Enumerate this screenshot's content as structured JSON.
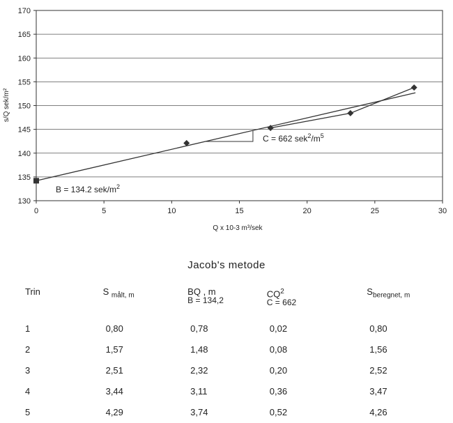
{
  "chart_data": {
    "type": "scatter",
    "xlabel": "Q x 10-3 m³/sek",
    "ylabel": "s/Q sek/m²",
    "xlim": [
      0,
      30
    ],
    "ylim": [
      130,
      170
    ],
    "x_ticks": [
      0,
      5,
      10,
      15,
      20,
      25,
      30
    ],
    "y_ticks": [
      130,
      135,
      140,
      145,
      150,
      155,
      160,
      165,
      170
    ],
    "grid": "horizontal",
    "series": [
      {
        "marker": "square",
        "color": "#333333",
        "x": [
          0
        ],
        "y": [
          134.2
        ]
      },
      {
        "marker": "diamond",
        "color": "#333333",
        "x": [
          11.1,
          17.3,
          23.2,
          27.9
        ],
        "y": [
          142.1,
          145.3,
          148.4,
          153.8
        ]
      }
    ],
    "fit_line": {
      "x": [
        0,
        28
      ],
      "y": [
        134.2,
        152.7
      ]
    },
    "connector": {
      "x": [
        17.3,
        23.2,
        27.9
      ],
      "y": [
        145.3,
        148.4,
        153.8
      ]
    },
    "annotations": {
      "intercept": {
        "prefix": "B = 134.2 sek/m",
        "sup": "2"
      },
      "slope": {
        "prefix": "C = 662 sek",
        "sup1": "2",
        "mid": "/m",
        "sup2": "5"
      }
    }
  },
  "method": {
    "title": "Jacob's metode",
    "headers": {
      "trin": "Trin",
      "s_maalt": "S",
      "s_maalt_sub": "målt, m",
      "bq": "BQ , m",
      "bq_sub": "B = 134,2",
      "cq": "CQ",
      "cq_sup": "2",
      "cq_sub": "C = 662",
      "s_beregnet": "S",
      "s_beregnet_sub": "beregnet, m"
    },
    "rows": [
      {
        "trin": "1",
        "s_maalt": "0,80",
        "bq": "0,78",
        "cq": "0,02",
        "s_beregnet": "0,80"
      },
      {
        "trin": "2",
        "s_maalt": "1,57",
        "bq": "1,48",
        "cq": "0,08",
        "s_beregnet": "1,56"
      },
      {
        "trin": "3",
        "s_maalt": "2,51",
        "bq": "2,32",
        "cq": "0,20",
        "s_beregnet": "2,52"
      },
      {
        "trin": "4",
        "s_maalt": "3,44",
        "bq": "3,11",
        "cq": "0,36",
        "s_beregnet": "3,47"
      },
      {
        "trin": "5",
        "s_maalt": "4,29",
        "bq": "3,74",
        "cq": "0,52",
        "s_beregnet": "4,26"
      }
    ]
  }
}
